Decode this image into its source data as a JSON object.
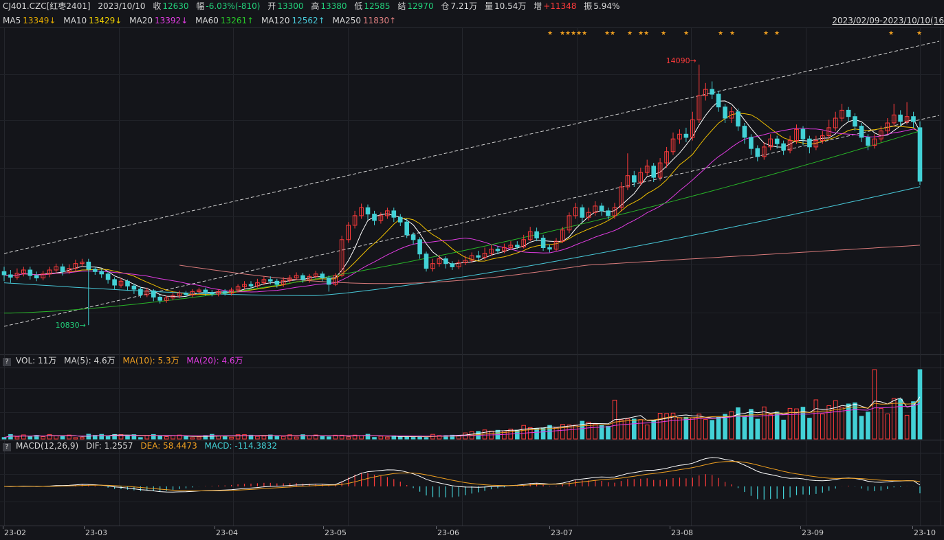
{
  "header": {
    "symbol": "CJ401.CZC[红枣2401]",
    "date": "2023/10/10",
    "close_label": "收",
    "close_value": "12630",
    "change_label": "幅",
    "change_value": "-6.03%(-810)",
    "open_label": "开",
    "open_value": "13300",
    "high_label": "高",
    "high_value": "13380",
    "low_label": "低",
    "low_value": "12585",
    "settle_label": "结",
    "settle_value": "12970",
    "oi_label": "仓",
    "oi_value": "7.21万",
    "volume_label": "量",
    "volume_value": "10.54万",
    "oi_change_label": "增",
    "oi_change_value": "+11348",
    "amplitude_label": "振",
    "amplitude_value": "5.94%"
  },
  "ma_legend": {
    "ma5_label": "MA5",
    "ma5_value": "13349↓",
    "ma10_label": "MA10",
    "ma10_value": "13429↓",
    "ma20_label": "MA20",
    "ma20_value": "13392↓",
    "ma60_label": "MA60",
    "ma60_value": "13261↑",
    "ma120_label": "MA120",
    "ma120_value": "12562↑",
    "ma250_label": "MA250",
    "ma250_value": "11830↑"
  },
  "date_range": "2023/02/09-2023/10/10(16",
  "vol_legend": {
    "help": "?",
    "vol": "VOL: 11万",
    "ma5": "MA(5): 4.6万",
    "ma10": "MA(10): 5.3万",
    "ma20": "MA(20): 4.6万"
  },
  "macd_legend": {
    "help": "?",
    "name": "MACD(12,26,9)",
    "dif": "DIF: 1.2557",
    "dea": "DEA: 58.4473",
    "macd": "MACD: -114.3832"
  },
  "colors": {
    "background": "#14151a",
    "up": "#ff3b3b",
    "down": "#43d1d6",
    "ma5": "#ffffff",
    "ma10": "#f0a020",
    "ma20": "#e23ce3",
    "ma60": "#28b428",
    "ma120": "#48c8d8",
    "ma250": "#d87a7a",
    "dif": "#ffffff",
    "dea": "#f0a020",
    "highlight_value_up": "#ff3b3b",
    "highlight_value_down": "#22d07a"
  },
  "chart_data": {
    "type": "candlestick",
    "x_ticks": [
      "23-02",
      "23-03",
      "23-04",
      "23-05",
      "23-06",
      "23-07",
      "23-08",
      "23-09",
      "23-10"
    ],
    "price_range": [
      10600,
      14400
    ],
    "annotations": [
      {
        "label": "14090",
        "value": 14090,
        "kind": "high"
      },
      {
        "label": "10830",
        "value": 10830,
        "kind": "low"
      }
    ],
    "candles": [
      {
        "o": 11500,
        "c": 11460,
        "h": 11560,
        "l": 11380
      },
      {
        "o": 11460,
        "c": 11430,
        "h": 11520,
        "l": 11360
      },
      {
        "o": 11430,
        "c": 11480,
        "h": 11540,
        "l": 11400
      },
      {
        "o": 11480,
        "c": 11520,
        "h": 11560,
        "l": 11440
      },
      {
        "o": 11520,
        "c": 11450,
        "h": 11560,
        "l": 11400
      },
      {
        "o": 11450,
        "c": 11420,
        "h": 11500,
        "l": 11380
      },
      {
        "o": 11420,
        "c": 11470,
        "h": 11510,
        "l": 11390
      },
      {
        "o": 11470,
        "c": 11520,
        "h": 11560,
        "l": 11430
      },
      {
        "o": 11520,
        "c": 11560,
        "h": 11600,
        "l": 11480
      },
      {
        "o": 11560,
        "c": 11500,
        "h": 11600,
        "l": 11450
      },
      {
        "o": 11500,
        "c": 11540,
        "h": 11590,
        "l": 11470
      },
      {
        "o": 11540,
        "c": 11600,
        "h": 11650,
        "l": 11500
      },
      {
        "o": 11600,
        "c": 11620,
        "h": 11660,
        "l": 11560
      },
      {
        "o": 11620,
        "c": 11530,
        "h": 11660,
        "l": 10830
      },
      {
        "o": 11530,
        "c": 11500,
        "h": 11560,
        "l": 11460
      },
      {
        "o": 11500,
        "c": 11470,
        "h": 11530,
        "l": 11420
      },
      {
        "o": 11470,
        "c": 11400,
        "h": 11500,
        "l": 11350
      },
      {
        "o": 11400,
        "c": 11330,
        "h": 11430,
        "l": 11280
      },
      {
        "o": 11330,
        "c": 11380,
        "h": 11420,
        "l": 11300
      },
      {
        "o": 11380,
        "c": 11320,
        "h": 11400,
        "l": 11260
      },
      {
        "o": 11320,
        "c": 11280,
        "h": 11350,
        "l": 11220
      },
      {
        "o": 11280,
        "c": 11210,
        "h": 11310,
        "l": 11170
      },
      {
        "o": 11210,
        "c": 11260,
        "h": 11300,
        "l": 11180
      },
      {
        "o": 11260,
        "c": 11180,
        "h": 11280,
        "l": 11130
      },
      {
        "o": 11180,
        "c": 11140,
        "h": 11210,
        "l": 11100
      },
      {
        "o": 11140,
        "c": 11170,
        "h": 11200,
        "l": 11110
      },
      {
        "o": 11170,
        "c": 11200,
        "h": 11240,
        "l": 11140
      },
      {
        "o": 11200,
        "c": 11230,
        "h": 11260,
        "l": 11170
      },
      {
        "o": 11230,
        "c": 11210,
        "h": 11260,
        "l": 11180
      },
      {
        "o": 11210,
        "c": 11250,
        "h": 11280,
        "l": 11180
      },
      {
        "o": 11250,
        "c": 11270,
        "h": 11300,
        "l": 11220
      },
      {
        "o": 11270,
        "c": 11240,
        "h": 11300,
        "l": 11200
      },
      {
        "o": 11240,
        "c": 11220,
        "h": 11270,
        "l": 11190
      },
      {
        "o": 11220,
        "c": 11250,
        "h": 11280,
        "l": 11190
      },
      {
        "o": 11250,
        "c": 11230,
        "h": 11280,
        "l": 11200
      },
      {
        "o": 11230,
        "c": 11270,
        "h": 11300,
        "l": 11200
      },
      {
        "o": 11270,
        "c": 11310,
        "h": 11340,
        "l": 11240
      },
      {
        "o": 11310,
        "c": 11340,
        "h": 11380,
        "l": 11280
      },
      {
        "o": 11340,
        "c": 11320,
        "h": 11380,
        "l": 11290
      },
      {
        "o": 11320,
        "c": 11360,
        "h": 11410,
        "l": 11300
      },
      {
        "o": 11360,
        "c": 11400,
        "h": 11440,
        "l": 11330
      },
      {
        "o": 11400,
        "c": 11380,
        "h": 11440,
        "l": 11340
      },
      {
        "o": 11380,
        "c": 11340,
        "h": 11410,
        "l": 11300
      },
      {
        "o": 11340,
        "c": 11390,
        "h": 11430,
        "l": 11310
      },
      {
        "o": 11390,
        "c": 11420,
        "h": 11460,
        "l": 11360
      },
      {
        "o": 11420,
        "c": 11450,
        "h": 11490,
        "l": 11400
      },
      {
        "o": 11450,
        "c": 11400,
        "h": 11480,
        "l": 11360
      },
      {
        "o": 11400,
        "c": 11440,
        "h": 11470,
        "l": 11360
      },
      {
        "o": 11440,
        "c": 11470,
        "h": 11510,
        "l": 11410
      },
      {
        "o": 11470,
        "c": 11420,
        "h": 11500,
        "l": 11380
      },
      {
        "o": 11420,
        "c": 11340,
        "h": 11450,
        "l": 11250
      },
      {
        "o": 11340,
        "c": 11450,
        "h": 11480,
        "l": 11320
      },
      {
        "o": 11450,
        "c": 11900,
        "h": 11950,
        "l": 11430
      },
      {
        "o": 11900,
        "c": 12080,
        "h": 12120,
        "l": 11860
      },
      {
        "o": 12080,
        "c": 12200,
        "h": 12260,
        "l": 12040
      },
      {
        "o": 12200,
        "c": 12300,
        "h": 12350,
        "l": 12160
      },
      {
        "o": 12300,
        "c": 12220,
        "h": 12340,
        "l": 12150
      },
      {
        "o": 12220,
        "c": 12140,
        "h": 12260,
        "l": 12080
      },
      {
        "o": 12140,
        "c": 12200,
        "h": 12240,
        "l": 12100
      },
      {
        "o": 12200,
        "c": 12260,
        "h": 12300,
        "l": 12160
      },
      {
        "o": 12260,
        "c": 12180,
        "h": 12300,
        "l": 12120
      },
      {
        "o": 12180,
        "c": 12120,
        "h": 12220,
        "l": 12070
      },
      {
        "o": 12120,
        "c": 11960,
        "h": 12160,
        "l": 11920
      },
      {
        "o": 11960,
        "c": 11900,
        "h": 11990,
        "l": 11840
      },
      {
        "o": 11900,
        "c": 11720,
        "h": 11930,
        "l": 11660
      },
      {
        "o": 11720,
        "c": 11540,
        "h": 11750,
        "l": 11500
      },
      {
        "o": 11540,
        "c": 11600,
        "h": 11660,
        "l": 11500
      },
      {
        "o": 11600,
        "c": 11660,
        "h": 11710,
        "l": 11560
      },
      {
        "o": 11660,
        "c": 11600,
        "h": 11690,
        "l": 11540
      },
      {
        "o": 11600,
        "c": 11560,
        "h": 11630,
        "l": 11520
      },
      {
        "o": 11560,
        "c": 11610,
        "h": 11650,
        "l": 11530
      },
      {
        "o": 11610,
        "c": 11640,
        "h": 11700,
        "l": 11580
      },
      {
        "o": 11640,
        "c": 11700,
        "h": 11740,
        "l": 11610
      },
      {
        "o": 11700,
        "c": 11680,
        "h": 11760,
        "l": 11640
      },
      {
        "o": 11680,
        "c": 11730,
        "h": 11800,
        "l": 11650
      },
      {
        "o": 11730,
        "c": 11780,
        "h": 11830,
        "l": 11700
      },
      {
        "o": 11780,
        "c": 11760,
        "h": 11820,
        "l": 11720
      },
      {
        "o": 11760,
        "c": 11800,
        "h": 11850,
        "l": 11730
      },
      {
        "o": 11800,
        "c": 11830,
        "h": 11880,
        "l": 11770
      },
      {
        "o": 11830,
        "c": 11810,
        "h": 11880,
        "l": 11780
      },
      {
        "o": 11810,
        "c": 11900,
        "h": 11960,
        "l": 11790
      },
      {
        "o": 11900,
        "c": 12000,
        "h": 12060,
        "l": 11880
      },
      {
        "o": 12000,
        "c": 11920,
        "h": 12050,
        "l": 11880
      },
      {
        "o": 11920,
        "c": 11800,
        "h": 11960,
        "l": 11760
      },
      {
        "o": 11800,
        "c": 11780,
        "h": 11840,
        "l": 11740
      },
      {
        "o": 11780,
        "c": 11880,
        "h": 11920,
        "l": 11760
      },
      {
        "o": 11880,
        "c": 12020,
        "h": 12060,
        "l": 11860
      },
      {
        "o": 12020,
        "c": 12200,
        "h": 12240,
        "l": 11980
      },
      {
        "o": 12200,
        "c": 12300,
        "h": 12360,
        "l": 12160
      },
      {
        "o": 12300,
        "c": 12180,
        "h": 12340,
        "l": 12120
      },
      {
        "o": 12180,
        "c": 12240,
        "h": 12300,
        "l": 12140
      },
      {
        "o": 12240,
        "c": 12320,
        "h": 12380,
        "l": 12200
      },
      {
        "o": 12320,
        "c": 12260,
        "h": 12360,
        "l": 12200
      },
      {
        "o": 12260,
        "c": 12200,
        "h": 12300,
        "l": 12150
      },
      {
        "o": 12200,
        "c": 12300,
        "h": 12360,
        "l": 12160
      },
      {
        "o": 12300,
        "c": 12560,
        "h": 12620,
        "l": 12260
      },
      {
        "o": 12560,
        "c": 12700,
        "h": 12980,
        "l": 12520
      },
      {
        "o": 12700,
        "c": 12620,
        "h": 12760,
        "l": 12560
      },
      {
        "o": 12620,
        "c": 12740,
        "h": 12800,
        "l": 12580
      },
      {
        "o": 12740,
        "c": 12820,
        "h": 12900,
        "l": 12700
      },
      {
        "o": 12820,
        "c": 12680,
        "h": 12860,
        "l": 12620
      },
      {
        "o": 12680,
        "c": 12860,
        "h": 12920,
        "l": 12640
      },
      {
        "o": 12860,
        "c": 13000,
        "h": 13060,
        "l": 12800
      },
      {
        "o": 13000,
        "c": 13160,
        "h": 13240,
        "l": 12960
      },
      {
        "o": 13160,
        "c": 13220,
        "h": 13280,
        "l": 13100
      },
      {
        "o": 13220,
        "c": 13180,
        "h": 13300,
        "l": 13120
      },
      {
        "o": 13180,
        "c": 13400,
        "h": 13500,
        "l": 13140
      },
      {
        "o": 13400,
        "c": 13700,
        "h": 14090,
        "l": 13360
      },
      {
        "o": 13700,
        "c": 13780,
        "h": 13860,
        "l": 13640
      },
      {
        "o": 13780,
        "c": 13720,
        "h": 13880,
        "l": 13660
      },
      {
        "o": 13720,
        "c": 13560,
        "h": 13760,
        "l": 13500
      },
      {
        "o": 13560,
        "c": 13420,
        "h": 13600,
        "l": 13360
      },
      {
        "o": 13420,
        "c": 13500,
        "h": 13560,
        "l": 13360
      },
      {
        "o": 13500,
        "c": 13320,
        "h": 13540,
        "l": 13260
      },
      {
        "o": 13320,
        "c": 13180,
        "h": 13360,
        "l": 13100
      },
      {
        "o": 13180,
        "c": 13040,
        "h": 13220,
        "l": 12960
      },
      {
        "o": 13040,
        "c": 12940,
        "h": 13080,
        "l": 12880
      },
      {
        "o": 12940,
        "c": 13060,
        "h": 13120,
        "l": 12900
      },
      {
        "o": 13060,
        "c": 13160,
        "h": 13220,
        "l": 13020
      },
      {
        "o": 13160,
        "c": 13100,
        "h": 13200,
        "l": 13040
      },
      {
        "o": 13100,
        "c": 13020,
        "h": 13140,
        "l": 12960
      },
      {
        "o": 13020,
        "c": 13140,
        "h": 13200,
        "l": 12980
      },
      {
        "o": 13140,
        "c": 13280,
        "h": 13340,
        "l": 13100
      },
      {
        "o": 13280,
        "c": 13160,
        "h": 13320,
        "l": 13080
      },
      {
        "o": 13160,
        "c": 13060,
        "h": 13200,
        "l": 12980
      },
      {
        "o": 13060,
        "c": 13140,
        "h": 13200,
        "l": 13020
      },
      {
        "o": 13140,
        "c": 13200,
        "h": 13260,
        "l": 13100
      },
      {
        "o": 13200,
        "c": 13300,
        "h": 13400,
        "l": 13160
      },
      {
        "o": 13300,
        "c": 13420,
        "h": 13500,
        "l": 13260
      },
      {
        "o": 13420,
        "c": 13520,
        "h": 13600,
        "l": 13380
      },
      {
        "o": 13520,
        "c": 13440,
        "h": 13560,
        "l": 13380
      },
      {
        "o": 13440,
        "c": 13320,
        "h": 13480,
        "l": 13260
      },
      {
        "o": 13320,
        "c": 13180,
        "h": 13360,
        "l": 13120
      },
      {
        "o": 13180,
        "c": 13080,
        "h": 13220,
        "l": 13020
      },
      {
        "o": 13080,
        "c": 13160,
        "h": 13220,
        "l": 13040
      },
      {
        "o": 13160,
        "c": 13260,
        "h": 13320,
        "l": 13120
      },
      {
        "o": 13260,
        "c": 13360,
        "h": 13420,
        "l": 13220
      },
      {
        "o": 13360,
        "c": 13460,
        "h": 13600,
        "l": 13320
      },
      {
        "o": 13460,
        "c": 13380,
        "h": 13520,
        "l": 13320
      },
      {
        "o": 13380,
        "c": 13440,
        "h": 13620,
        "l": 13340
      },
      {
        "o": 13440,
        "c": 13380,
        "h": 13500,
        "l": 13300
      },
      {
        "o": 13300,
        "c": 12630,
        "h": 13380,
        "l": 12585
      }
    ],
    "volume_panel": {
      "series": [
        "VOL",
        "MA(5)",
        "MA(10)",
        "MA(20)"
      ]
    },
    "macd_panel": {
      "series": [
        "DIF",
        "DEA",
        "MACD"
      ]
    }
  }
}
